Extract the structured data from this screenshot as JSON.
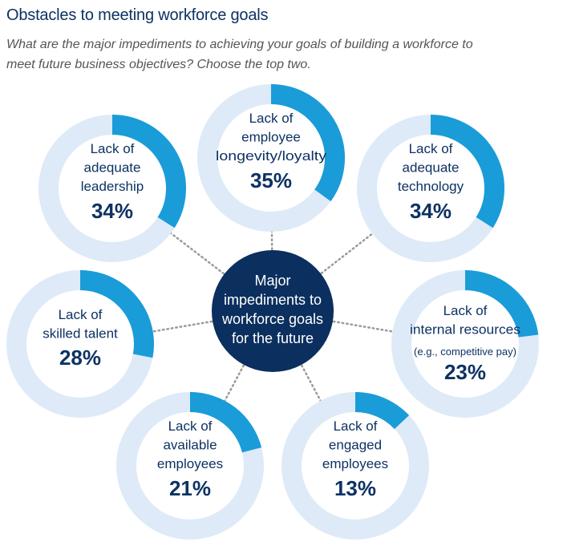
{
  "header": {
    "title": "Obstacles to meeting workforce goals",
    "subtitle_line1": "What are the major impediments to achieving your goals of building a workforce to",
    "subtitle_line2": "meet future business objectives? Choose the top two."
  },
  "colors": {
    "track": "#deeaf7",
    "fill": "#1a9cd8",
    "navy": "#0b2f5e",
    "connector": "#9a9a9a"
  },
  "chart_data": {
    "type": "donut",
    "title": "Obstacles to meeting workforce goals",
    "center_label": [
      "Major",
      "impediments to",
      "workforce goals",
      "for the future"
    ],
    "unit": "%",
    "items": [
      {
        "lines": [
          "Lack of",
          "adequate",
          "leadership"
        ],
        "value": 34
      },
      {
        "lines": [
          "Lack of",
          "employee",
          "longevity/loyalty"
        ],
        "value": 35
      },
      {
        "lines": [
          "Lack of",
          "adequate",
          "technology"
        ],
        "value": 34
      },
      {
        "lines": [
          "Lack of",
          "skilled talent"
        ],
        "value": 28
      },
      {
        "lines": [
          "Lack of",
          "internal resources"
        ],
        "note": "(e.g., competitive pay)",
        "value": 23
      },
      {
        "lines": [
          "Lack of",
          "available",
          "employees"
        ],
        "value": 21
      },
      {
        "lines": [
          "Lack of",
          "engaged",
          "employees"
        ],
        "value": 13
      }
    ]
  }
}
